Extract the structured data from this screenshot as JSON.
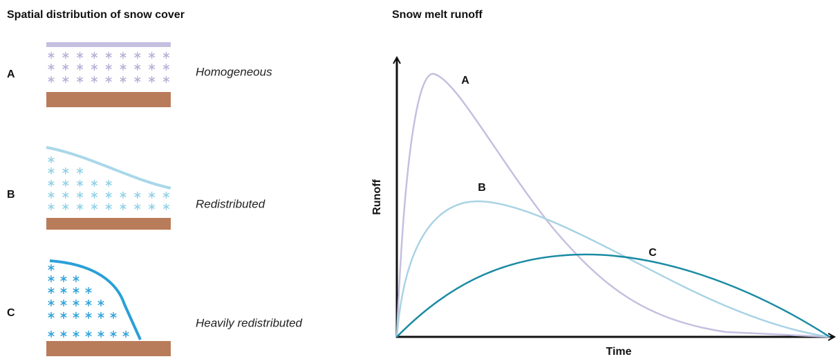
{
  "left": {
    "title": "Spatial distribution of snow cover",
    "rows": [
      {
        "label": "A",
        "description": "Homogeneous"
      },
      {
        "label": "B",
        "description": "Redistributed"
      },
      {
        "label": "C",
        "description": "Heavily redistributed"
      }
    ]
  },
  "right": {
    "title": "Snow melt runoff",
    "y_axis_label": "Runoff",
    "x_axis_label": "Time",
    "curves": [
      {
        "label": "A"
      },
      {
        "label": "B"
      },
      {
        "label": "C"
      }
    ]
  }
}
